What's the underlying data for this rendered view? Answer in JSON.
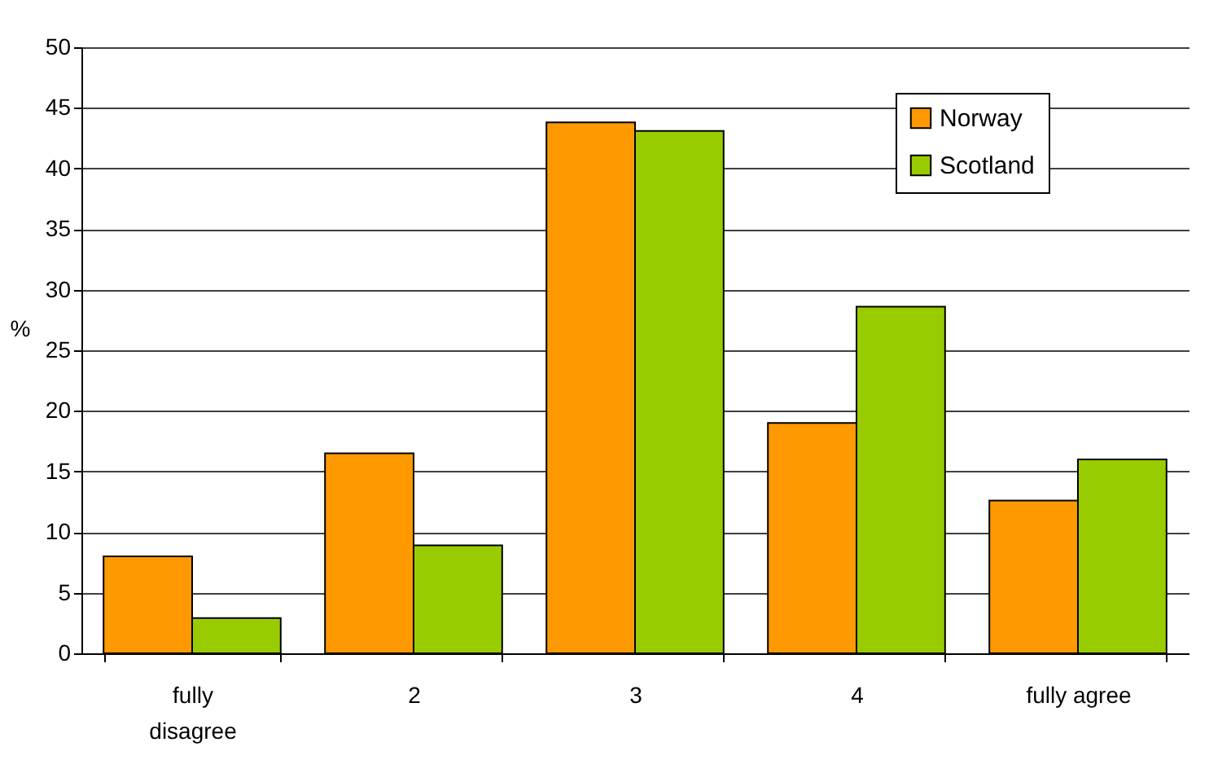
{
  "chart_data": {
    "type": "bar",
    "ylabel": "%",
    "categories": [
      "fully disagree",
      "2",
      "3",
      "4",
      "fully agree"
    ],
    "series": [
      {
        "name": "Norway",
        "color": "#ff9900",
        "values": [
          8.0,
          16.5,
          43.8,
          19.0,
          12.6
        ]
      },
      {
        "name": "Scotland",
        "color": "#99cc00",
        "values": [
          2.9,
          8.9,
          43.1,
          28.6,
          16.0
        ]
      }
    ],
    "ylim": [
      0,
      50
    ],
    "yticks": [
      0,
      5,
      10,
      15,
      20,
      25,
      30,
      35,
      40,
      45,
      50
    ],
    "grid": "y",
    "legend": "top right"
  }
}
